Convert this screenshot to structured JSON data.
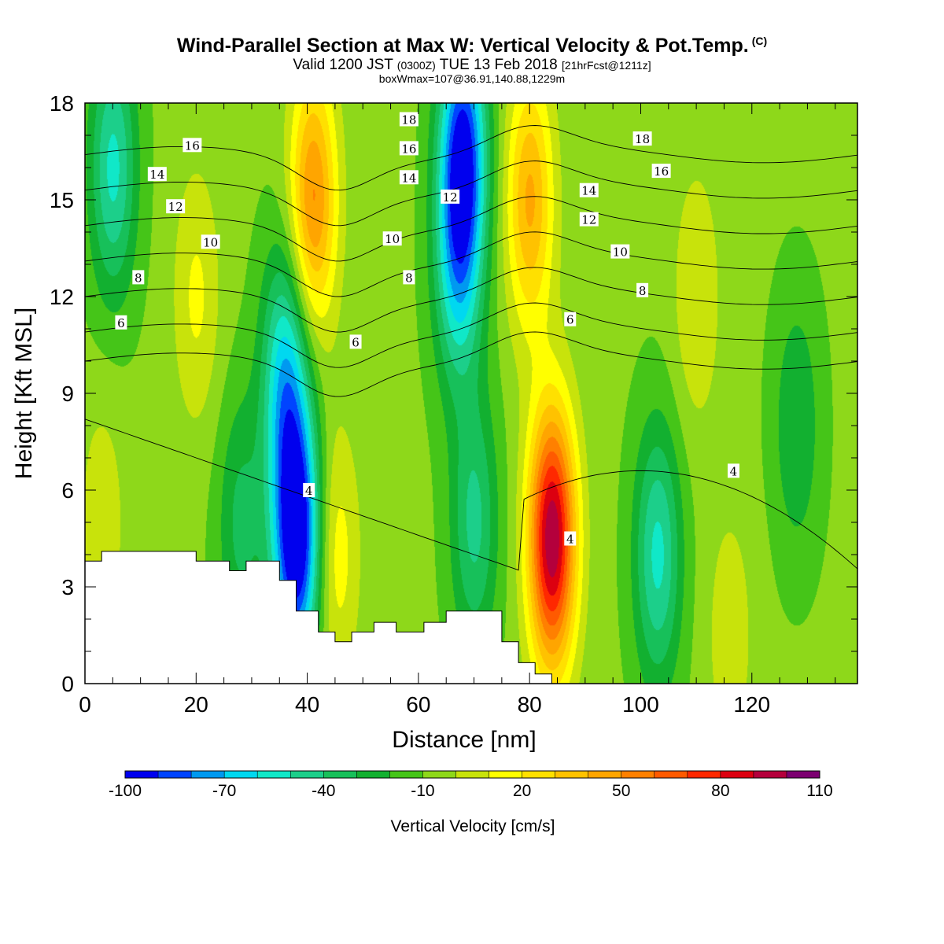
{
  "title": {
    "main": "Wind-Parallel Section at Max W: Vertical Velocity & Pot.Temp.",
    "copyright": "(C)",
    "valid_prefix": "Valid 1200 JST",
    "valid_utc": "(0300Z)",
    "valid_date": "TUE 13 Feb 2018",
    "forecast": "[21hrFcst@1211z]",
    "box": "boxWmax=107@36.91,140.88,1229m"
  },
  "chart_data": {
    "type": "heatmap",
    "xlabel": "Distance [nm]",
    "ylabel": "Height [Kft MSL]",
    "xlim": [
      0,
      139
    ],
    "ylim": [
      0,
      18
    ],
    "xticks": [
      "0",
      "20",
      "40",
      "60",
      "80",
      "100",
      "120"
    ],
    "yticks": [
      "0",
      "3",
      "6",
      "9",
      "12",
      "15",
      "18"
    ],
    "colorbar": {
      "label": "Vertical Velocity [cm/s]",
      "min": -100,
      "max": 110,
      "step": 10,
      "tick_labels": [
        "-100",
        "-70",
        "-40",
        "-10",
        "20",
        "50",
        "80",
        "110"
      ],
      "colors": [
        "#0000ee",
        "#0044ff",
        "#0099f0",
        "#00d8f0",
        "#10e8c8",
        "#1ccf8a",
        "#17c05a",
        "#12b030",
        "#45c518",
        "#8ed81a",
        "#c8e30b",
        "#ffff00",
        "#ffe000",
        "#ffc200",
        "#ffa500",
        "#ff8000",
        "#ff5a00",
        "#ff2800",
        "#dc0010",
        "#b4003c",
        "#7c0070"
      ]
    },
    "velocity_features": [
      {
        "x": 38,
        "z": 4.5,
        "w": -100
      },
      {
        "x": 36,
        "z": 9.5,
        "w": -55
      },
      {
        "x": 68,
        "z": 16.5,
        "w": -80
      },
      {
        "x": 67,
        "z": 13,
        "w": -45
      },
      {
        "x": 41,
        "z": 15,
        "w": 60
      },
      {
        "x": 84,
        "z": 4.5,
        "w": 107
      },
      {
        "x": 103,
        "z": 4,
        "w": -45
      },
      {
        "x": 80,
        "z": 15,
        "w": 50
      },
      {
        "x": 5,
        "z": 16,
        "w": -45
      },
      {
        "x": 20,
        "z": 12,
        "w": 20
      },
      {
        "x": 45,
        "z": 4,
        "w": 25
      },
      {
        "x": 28,
        "z": 5,
        "w": -25
      },
      {
        "x": 110,
        "z": 12,
        "w": 18
      },
      {
        "x": 70,
        "z": 5,
        "w": -35
      },
      {
        "x": 3,
        "z": 5,
        "w": 15
      },
      {
        "x": 116,
        "z": 1.5,
        "w": 15
      },
      {
        "x": 128,
        "z": 8,
        "w": -22
      }
    ],
    "terrain": {
      "x": [
        0,
        3,
        3,
        20,
        20,
        26,
        26,
        29,
        29,
        35,
        35,
        38,
        38,
        42,
        42,
        45,
        45,
        48,
        48,
        52,
        52,
        56,
        56,
        61,
        61,
        65,
        65,
        75,
        75,
        78,
        78,
        81,
        81,
        84,
        84
      ],
      "z": [
        3.8,
        3.8,
        4.1,
        4.1,
        3.8,
        3.8,
        3.5,
        3.5,
        3.8,
        3.8,
        3.2,
        3.2,
        2.25,
        2.25,
        1.6,
        1.6,
        1.3,
        1.3,
        1.6,
        1.6,
        1.9,
        1.9,
        1.6,
        1.6,
        1.9,
        1.9,
        2.25,
        2.25,
        1.3,
        1.3,
        0.65,
        0.65,
        0.3,
        0.3,
        0.0
      ]
    },
    "theta_levels": [
      6,
      8,
      10,
      12,
      14,
      16,
      18
    ],
    "contour_labels": [
      {
        "text": "16",
        "x": 19.3,
        "z": 16.7
      },
      {
        "text": "14",
        "x": 13.0,
        "z": 15.8
      },
      {
        "text": "12",
        "x": 16.3,
        "z": 14.8
      },
      {
        "text": "10",
        "x": 22.6,
        "z": 13.7
      },
      {
        "text": "8",
        "x": 9.6,
        "z": 12.6
      },
      {
        "text": "6",
        "x": 6.5,
        "z": 11.2
      },
      {
        "text": "18",
        "x": 58.3,
        "z": 17.5
      },
      {
        "text": "16",
        "x": 58.3,
        "z": 16.6
      },
      {
        "text": "14",
        "x": 58.3,
        "z": 15.7
      },
      {
        "text": "12",
        "x": 65.7,
        "z": 15.1
      },
      {
        "text": "10",
        "x": 55.3,
        "z": 13.8
      },
      {
        "text": "8",
        "x": 58.3,
        "z": 12.6
      },
      {
        "text": "6",
        "x": 48.7,
        "z": 10.6
      },
      {
        "text": "18",
        "x": 100.3,
        "z": 16.9
      },
      {
        "text": "16",
        "x": 103.7,
        "z": 15.9
      },
      {
        "text": "14",
        "x": 90.7,
        "z": 15.3
      },
      {
        "text": "12",
        "x": 90.7,
        "z": 14.4
      },
      {
        "text": "10",
        "x": 96.3,
        "z": 13.4
      },
      {
        "text": "8",
        "x": 100.3,
        "z": 12.2
      },
      {
        "text": "6",
        "x": 87.3,
        "z": 11.3
      },
      {
        "text": "4",
        "x": 40.3,
        "z": 6.0
      },
      {
        "text": "4",
        "x": 87.3,
        "z": 4.5
      },
      {
        "text": "4",
        "x": 116.7,
        "z": 6.6
      }
    ]
  }
}
